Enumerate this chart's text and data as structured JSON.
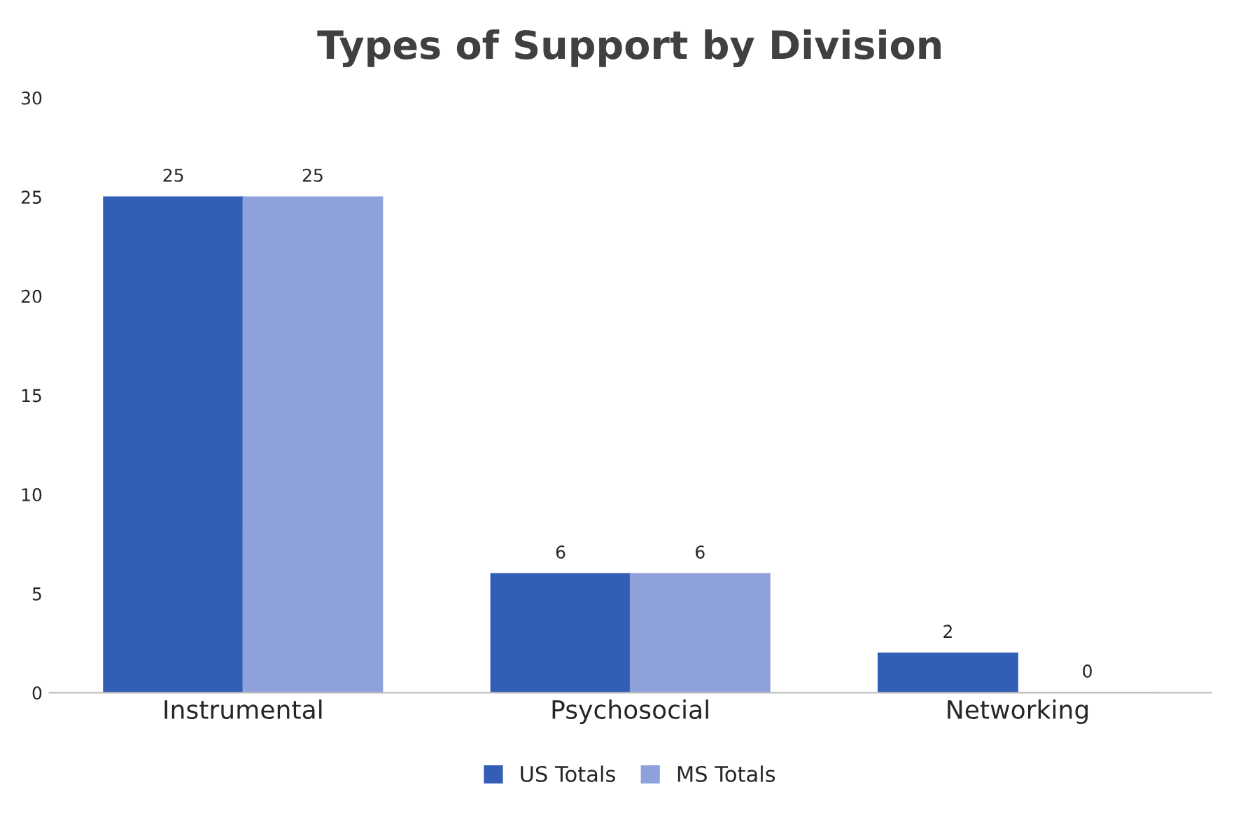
{
  "chart_data": {
    "type": "bar",
    "title": "Types of Support by Division",
    "categories": [
      "Instrumental",
      "Psychosocial",
      "Networking"
    ],
    "series": [
      {
        "name": "US Totals",
        "color": "#335eb5",
        "values": [
          25,
          6,
          2
        ]
      },
      {
        "name": "MS Totals",
        "color": "#8fa1da",
        "values": [
          25,
          6,
          0
        ]
      }
    ],
    "ylim": [
      0,
      30
    ],
    "yticks": [
      0,
      5,
      10,
      15,
      20,
      25,
      30
    ],
    "data_labels": true,
    "grid": false,
    "legend": "bottom"
  }
}
